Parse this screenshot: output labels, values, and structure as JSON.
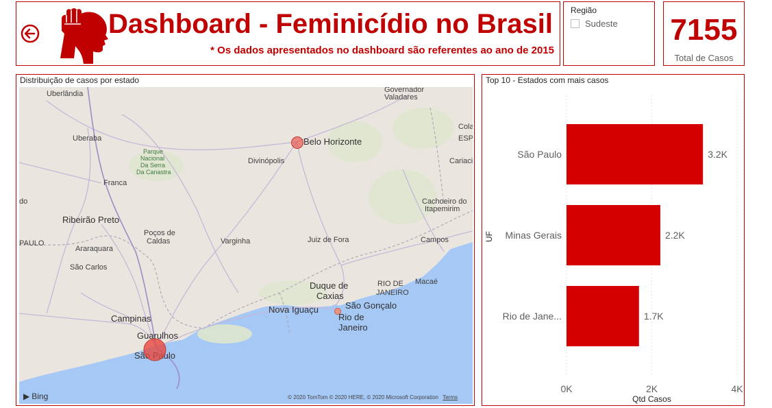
{
  "header": {
    "title": "Dashboard - Feminicídio no Brasil",
    "subtitle": "* Os dados apresentados no dashboard são referentes ao ano de 2015",
    "back_icon": "back-arrow-icon",
    "logo_icon": "raised-fist-woman-logo"
  },
  "region_filter": {
    "title": "Região",
    "options": [
      {
        "label": "Sudeste",
        "checked": false
      }
    ]
  },
  "kpi": {
    "value": "7155",
    "label": "Total de Casos"
  },
  "map": {
    "title": "Distribuição de casos por estado",
    "bing_label": "Bing",
    "copyright": "© 2020 TomTom © 2020 HERE, © 2020 Microsoft Corporation",
    "terms": "Terms",
    "cities": [
      "Uberlândia",
      "Governador Valadares",
      "Uberaba",
      "Belo Horizonte",
      "Cola ESP",
      "Parque Nacional Da Serra Da Canastra",
      "Divinópolis",
      "Cariaci",
      "Franca",
      "Cachoeiro do Itapemirim",
      "Ribeirão Preto",
      "Poços de Caldas",
      "Varginha",
      "Juiz de Fora",
      "Campos",
      "PAULO",
      "Araraquara",
      "São Carlos",
      "Duque de Caxias",
      "RIO DE JANEIRO",
      "Macaé",
      "Nova Iguaçu",
      "São Gonçalo",
      "Rio de Janeiro",
      "Campinas",
      "Guarulhos",
      "São Paulo"
    ],
    "bubbles": [
      {
        "state": "São Paulo",
        "cases": 3200
      },
      {
        "state": "Minas Gerais",
        "cases": 2200
      },
      {
        "state": "Rio de Janeiro",
        "cases": 1700
      }
    ],
    "colors": {
      "land": "#eae6df",
      "water": "#a6c8f5",
      "bubble": "#e8453c"
    }
  },
  "chart": {
    "title": "Top 10 - Estados com mais casos",
    "color": "#d40000"
  },
  "chart_data": {
    "type": "bar",
    "orientation": "horizontal",
    "title": "Top 10 - Estados com mais casos",
    "categories": [
      "São Paulo",
      "Minas Gerais",
      "Rio de Jane..."
    ],
    "values": [
      3200,
      2200,
      1700
    ],
    "data_labels": [
      "3.2K",
      "2.2K",
      "1.7K"
    ],
    "xlabel": "Qtd Casos",
    "ylabel": "UF",
    "xlim": [
      0,
      4000
    ],
    "xticks": [
      "0K",
      "2K",
      "4K"
    ],
    "grid": true
  }
}
